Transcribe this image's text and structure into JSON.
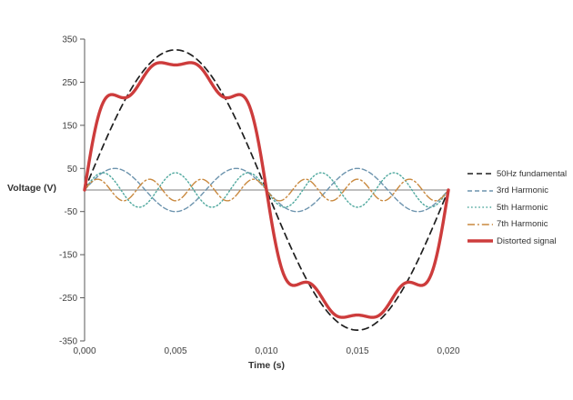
{
  "figure": {
    "background": "#ffffff",
    "axis_color": "#595959",
    "zero_line_color": "#7f7f7f",
    "tick_label_color": "#3f3f3f"
  },
  "axes": {
    "y_title": "Voltage (V)",
    "x_title": "Time (s)",
    "y_tick_labels": [
      "350",
      "250",
      "150",
      "50",
      "-50",
      "-150",
      "-250",
      "-350"
    ],
    "y_tick_values": [
      350,
      250,
      150,
      50,
      -50,
      -150,
      -250,
      -350
    ],
    "x_tick_labels": [
      "0,000",
      "0,005",
      "0,010",
      "0,015",
      "0,020"
    ],
    "x_tick_values": [
      0,
      0.005,
      0.01,
      0.015,
      0.02
    ]
  },
  "chart_data": {
    "type": "line",
    "title": "",
    "xlabel": "Time (s)",
    "ylabel": "Voltage (V)",
    "xlim": [
      0,
      0.02
    ],
    "ylim": [
      -350,
      350
    ],
    "grid": false,
    "legend_position": "right",
    "x_unit": "s",
    "y_unit": "V",
    "series": [
      {
        "name": "50Hz fundamental",
        "type": "sine",
        "amplitude_V": 325,
        "frequency_Hz": 50,
        "phase_deg": 0,
        "color": "#1f1f1f",
        "style": "dashed",
        "linewidth": 1.7
      },
      {
        "name": "3rd Harmonic",
        "type": "sine",
        "amplitude_V": 50,
        "frequency_Hz": 150,
        "phase_deg": 0,
        "color": "#6d94ae",
        "style": "dashed-short",
        "linewidth": 1.4
      },
      {
        "name": "5th Harmonic",
        "type": "sine",
        "amplitude_V": 40,
        "frequency_Hz": 250,
        "phase_deg": 0,
        "color": "#4fa89e",
        "style": "dotted",
        "linewidth": 1.4
      },
      {
        "name": "7th Harmonic",
        "type": "sine",
        "amplitude_V": 25,
        "frequency_Hz": 350,
        "phase_deg": 0,
        "color": "#c9893f",
        "style": "dash-dot",
        "linewidth": 1.4
      },
      {
        "name": "Distorted signal",
        "type": "sum",
        "components": [
          0,
          1,
          2,
          3
        ],
        "color": "#cd3c3c",
        "style": "solid",
        "linewidth": 3.4
      }
    ]
  }
}
